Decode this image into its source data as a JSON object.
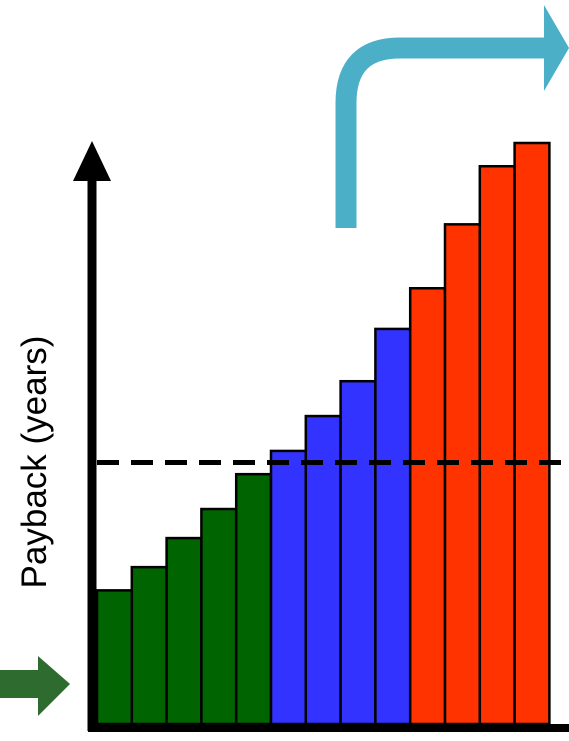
{
  "chart_data": {
    "type": "bar",
    "title": "",
    "xlabel": "",
    "ylabel": "Payback (years)",
    "ylim": [
      0,
      100
    ],
    "threshold": 45,
    "grid": false,
    "legend": "none",
    "values": [
      23,
      27,
      32,
      37,
      43,
      47,
      53,
      59,
      68,
      75,
      86,
      96,
      100
    ],
    "groups": [
      {
        "color": "#006400",
        "count": 5
      },
      {
        "color": "#3333ff",
        "count": 4
      },
      {
        "color": "#ff3300",
        "count": 4
      }
    ]
  },
  "colors": {
    "axis": "#000000",
    "dashed_line": "#000000",
    "green_arrow": "#2e6b2e",
    "blue_arrow": "#4bafc8",
    "bar_outline": "#000000"
  },
  "icons": {
    "left_arrow": "green-arrow-icon",
    "top_arrow": "blue-curved-arrow-icon"
  }
}
